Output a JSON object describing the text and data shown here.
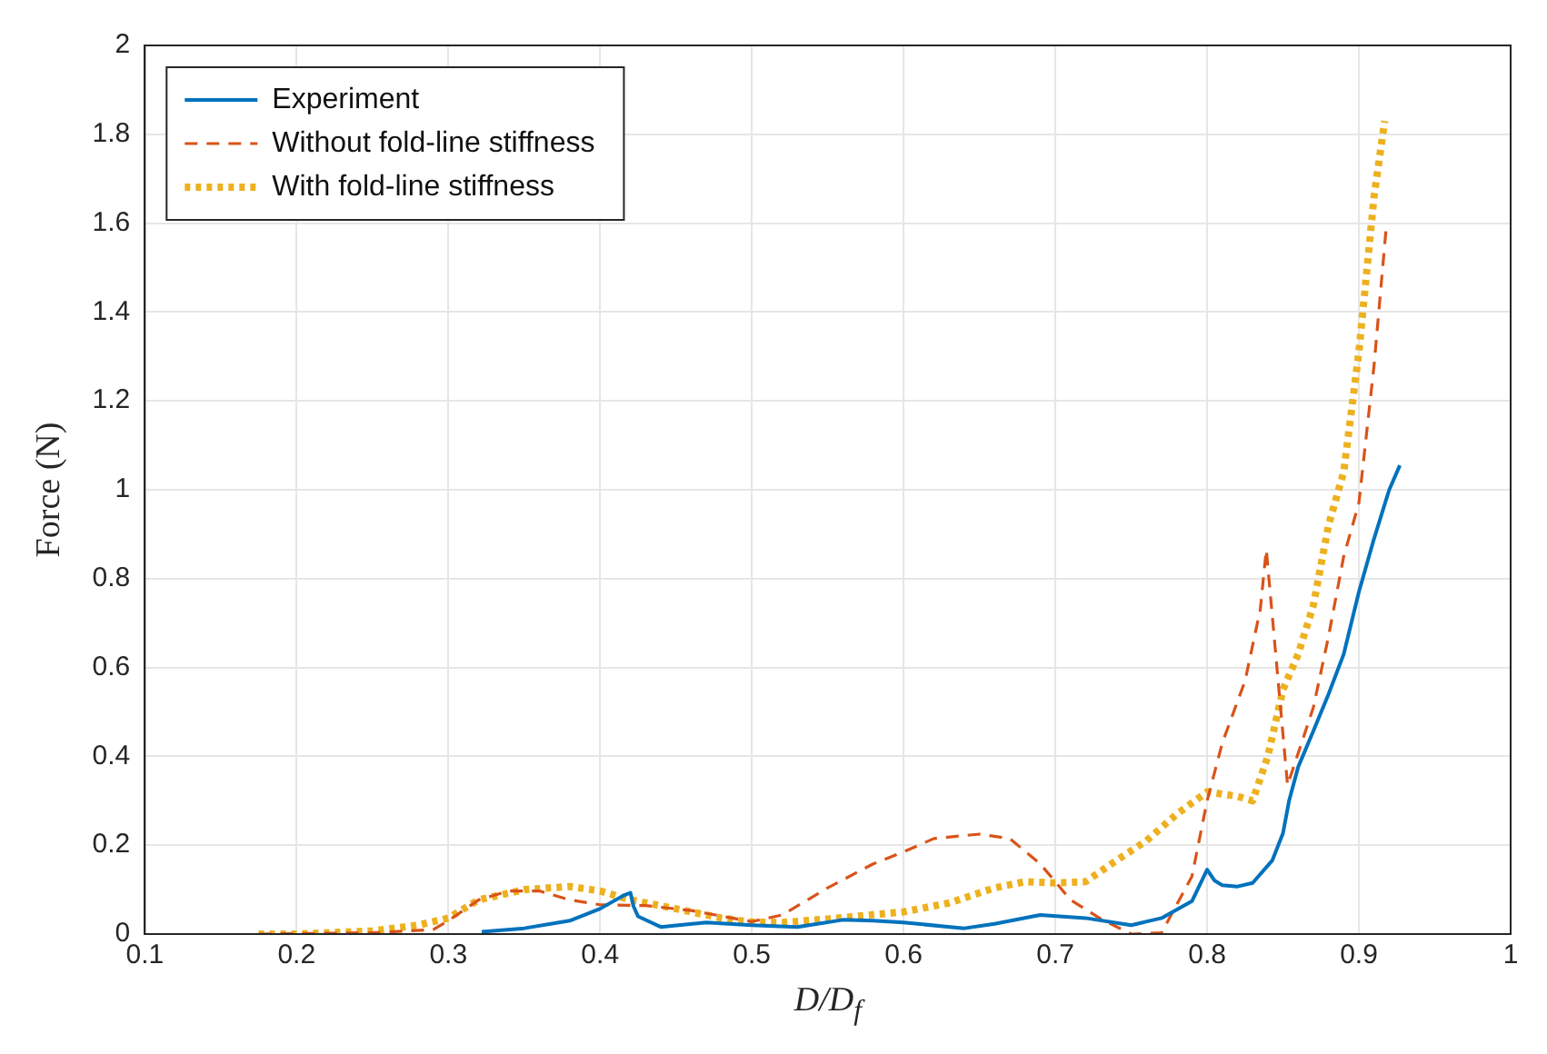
{
  "chart_data": {
    "type": "line",
    "xlabel": "D/D$_{f}$",
    "ylabel": "Force (N)",
    "xlim": [
      0.1,
      1
    ],
    "xticks": [
      0.1,
      0.2,
      0.3,
      0.4,
      0.5,
      0.6,
      0.7,
      0.8,
      0.9,
      1
    ],
    "ylim": [
      0,
      2
    ],
    "yticks": [
      0,
      0.2,
      0.4,
      0.6,
      0.8,
      1,
      1.2,
      1.4,
      1.6,
      1.8,
      2
    ],
    "grid": true,
    "legend": "top left",
    "marker": "none",
    "series": [
      {
        "name": "Experiment",
        "color": "#0072bd",
        "line_style": "solid",
        "x": [
          0.322,
          0.35,
          0.38,
          0.4,
          0.415,
          0.42,
          0.422,
          0.425,
          0.44,
          0.47,
          0.5,
          0.53,
          0.56,
          0.58,
          0.6,
          0.64,
          0.66,
          0.69,
          0.72,
          0.75,
          0.77,
          0.79,
          0.8,
          0.805,
          0.81,
          0.82,
          0.83,
          0.843,
          0.85,
          0.854,
          0.86,
          0.87,
          0.88,
          0.89,
          0.9,
          0.91,
          0.92,
          0.927
        ],
        "values": [
          0.005,
          0.013,
          0.03,
          0.057,
          0.086,
          0.093,
          0.063,
          0.04,
          0.016,
          0.026,
          0.02,
          0.016,
          0.032,
          0.03,
          0.026,
          0.013,
          0.023,
          0.043,
          0.036,
          0.02,
          0.036,
          0.074,
          0.145,
          0.12,
          0.11,
          0.107,
          0.115,
          0.166,
          0.227,
          0.3,
          0.376,
          0.457,
          0.54,
          0.63,
          0.77,
          0.89,
          1.0,
          1.055
        ]
      },
      {
        "name": "Without fold-line stiffness",
        "color": "#d95319",
        "line_style": "dashed",
        "x": [
          0.175,
          0.25,
          0.29,
          0.3,
          0.32,
          0.34,
          0.36,
          0.38,
          0.4,
          0.43,
          0.46,
          0.5,
          0.52,
          0.55,
          0.58,
          0.6,
          0.62,
          0.65,
          0.67,
          0.69,
          0.71,
          0.73,
          0.75,
          0.77,
          0.79,
          0.8,
          0.81,
          0.825,
          0.835,
          0.839,
          0.853,
          0.87,
          0.88,
          0.89,
          0.9,
          0.91,
          0.918
        ],
        "values": [
          0,
          0.003,
          0.01,
          0.03,
          0.077,
          0.097,
          0.097,
          0.077,
          0.066,
          0.064,
          0.053,
          0.028,
          0.043,
          0.104,
          0.158,
          0.185,
          0.215,
          0.225,
          0.215,
          0.158,
          0.077,
          0.034,
          0,
          0.003,
          0.13,
          0.3,
          0.43,
          0.57,
          0.73,
          0.865,
          0.335,
          0.51,
          0.67,
          0.85,
          0.97,
          1.28,
          1.59
        ]
      },
      {
        "name": "With fold-line stiffness",
        "color": "#edb120",
        "line_style": "dotted",
        "x": [
          0.175,
          0.2,
          0.25,
          0.28,
          0.3,
          0.32,
          0.35,
          0.38,
          0.4,
          0.42,
          0.45,
          0.48,
          0.5,
          0.52,
          0.55,
          0.6,
          0.63,
          0.66,
          0.68,
          0.7,
          0.72,
          0.74,
          0.76,
          0.78,
          0.8,
          0.82,
          0.83,
          0.84,
          0.85,
          0.86,
          0.87,
          0.88,
          0.89,
          0.9,
          0.91,
          0.917
        ],
        "values": [
          0,
          0,
          0.007,
          0.02,
          0.036,
          0.077,
          0.1,
          0.107,
          0.097,
          0.077,
          0.057,
          0.036,
          0.027,
          0.026,
          0.034,
          0.05,
          0.07,
          0.104,
          0.118,
          0.115,
          0.118,
          0.165,
          0.21,
          0.27,
          0.32,
          0.31,
          0.3,
          0.4,
          0.55,
          0.63,
          0.74,
          0.92,
          1.04,
          1.31,
          1.66,
          1.83
        ]
      }
    ]
  }
}
